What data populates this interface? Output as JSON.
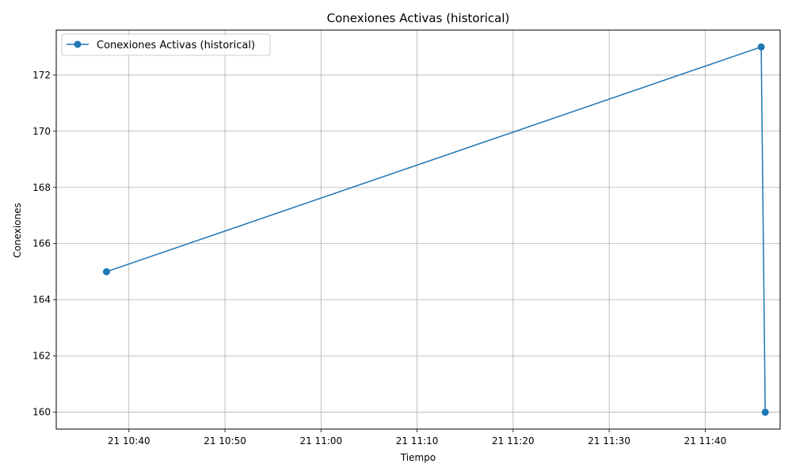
{
  "chart_data": {
    "type": "line",
    "title": "Conexiones Activas (historical)",
    "xlabel": "Tiempo",
    "ylabel": "Conexiones",
    "xlim": [
      "21 10:32:26",
      "21 11:47:48"
    ],
    "ylim": [
      159.4,
      173.6
    ],
    "grid": true,
    "legend_position": "upper-left",
    "x_ticks": [
      {
        "value": "21 10:40:00",
        "label": "21 10:40"
      },
      {
        "value": "21 10:50:00",
        "label": "21 10:50"
      },
      {
        "value": "21 11:00:00",
        "label": "21 11:00"
      },
      {
        "value": "21 11:10:00",
        "label": "21 11:10"
      },
      {
        "value": "21 11:20:00",
        "label": "21 11:20"
      },
      {
        "value": "21 11:30:00",
        "label": "21 11:30"
      },
      {
        "value": "21 11:40:00",
        "label": "21 11:40"
      }
    ],
    "y_ticks": [
      160,
      162,
      164,
      166,
      168,
      170,
      172
    ],
    "series": [
      {
        "name": "Conexiones Activas (historical)",
        "color": "#1f77b4",
        "marker": "circle",
        "points": [
          {
            "x": "21 10:37:40",
            "y": 165
          },
          {
            "x": "21 11:45:50",
            "y": 173
          },
          {
            "x": "21 11:46:15",
            "y": 160
          }
        ]
      }
    ]
  }
}
